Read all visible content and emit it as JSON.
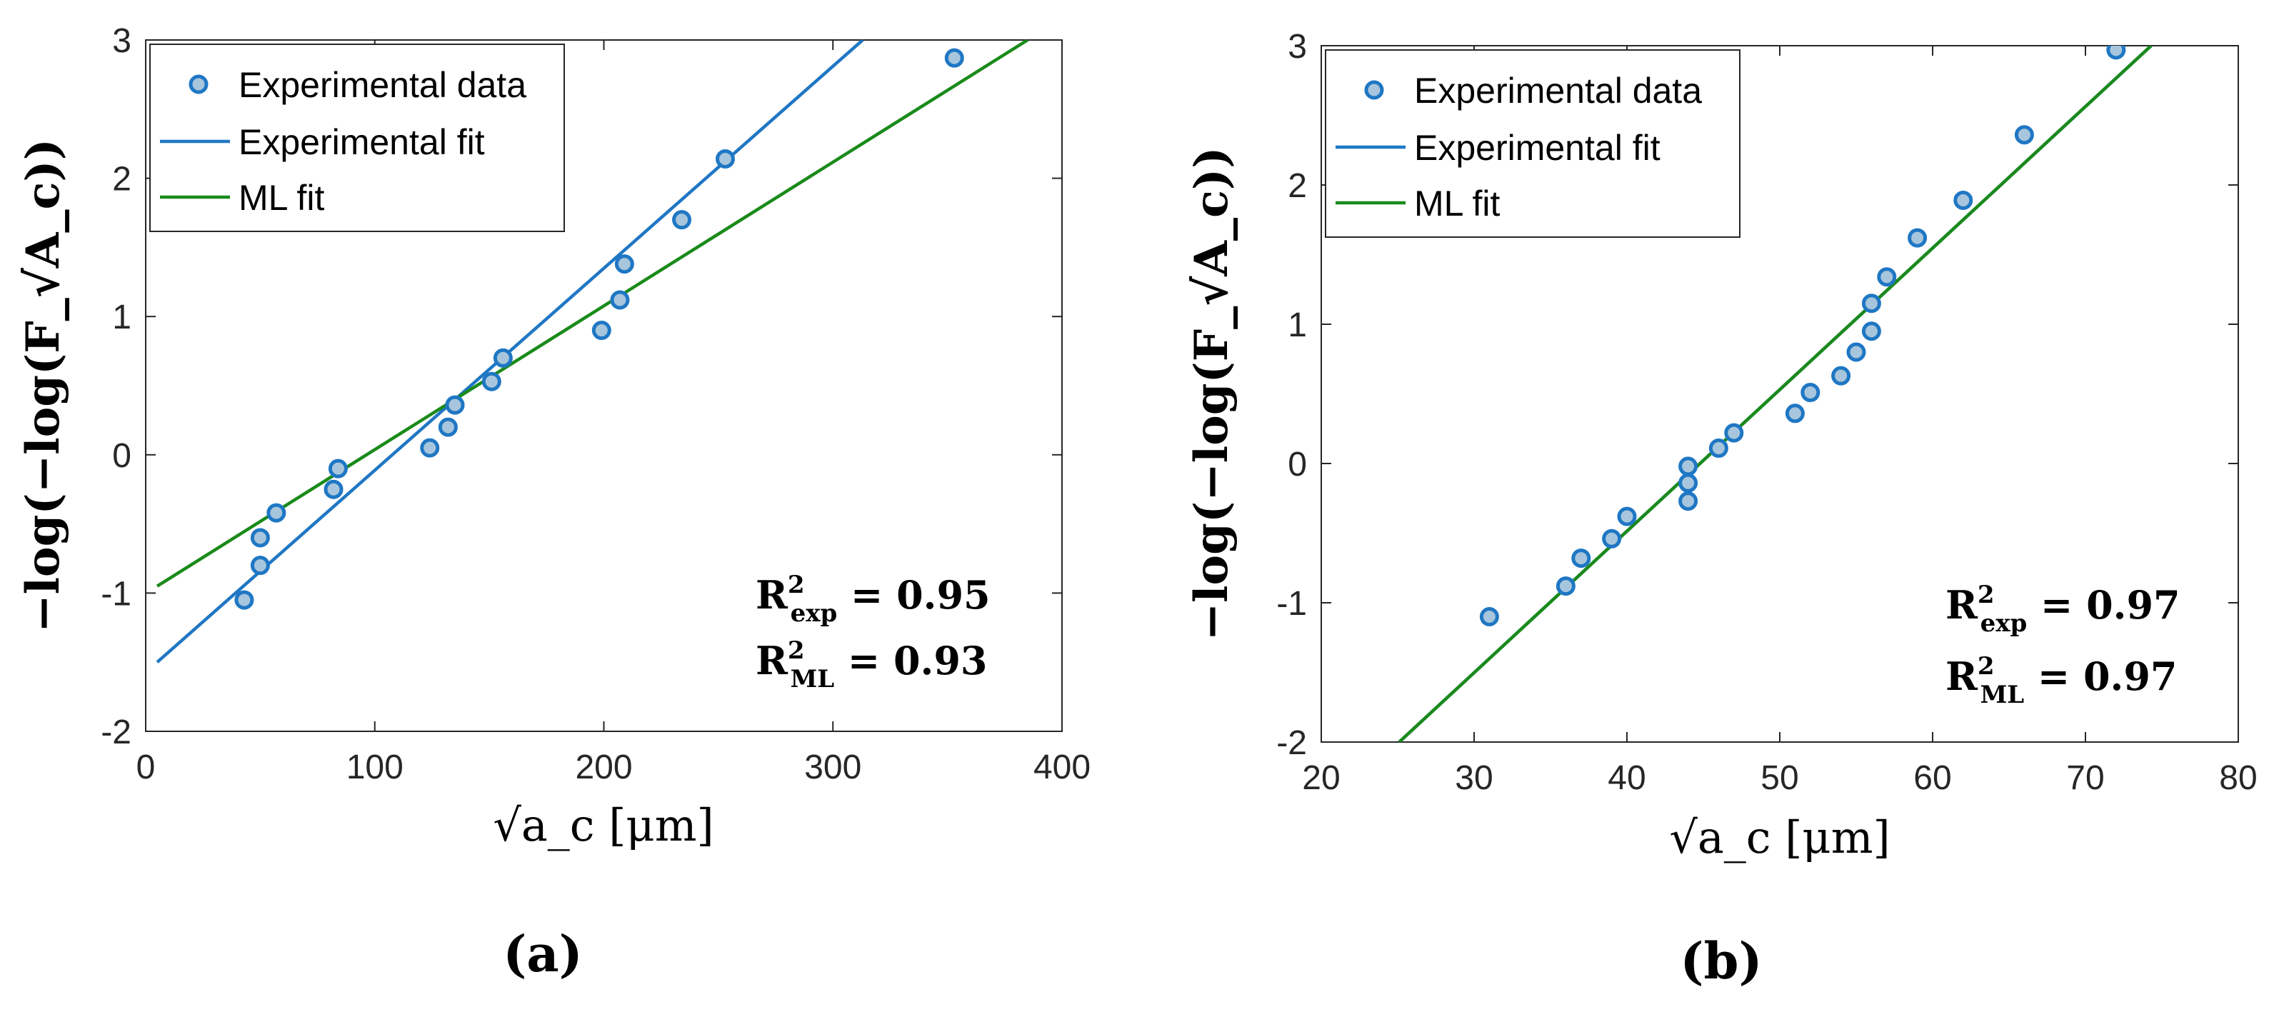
{
  "chart_data": [
    {
      "type": "scatter",
      "panel_label": "(a)",
      "xlabel": "√a_c [μm]",
      "ylabel": "−log(−log(F_√A_c))",
      "xlim": [
        0,
        400
      ],
      "ylim": [
        -2,
        3
      ],
      "x_ticks": [
        0,
        100,
        200,
        300,
        400
      ],
      "y_ticks": [
        -2,
        -1,
        0,
        1,
        2,
        3
      ],
      "x_tick_labels": [
        "0",
        "100",
        "200",
        "300",
        "400"
      ],
      "y_tick_labels": [
        "-2",
        "-1",
        "0",
        "1",
        "2",
        "3"
      ],
      "legend": {
        "placement": "top-left",
        "entries": [
          "Experimental data",
          "Experimental fit",
          "ML fit"
        ]
      },
      "series": [
        {
          "name": "Experimental data",
          "kind": "points",
          "x": [
            43,
            50,
            50,
            57,
            82,
            84,
            124,
            132,
            135,
            151,
            156,
            199,
            207,
            209,
            234,
            253,
            353
          ],
          "y": [
            -1.05,
            -0.8,
            -0.6,
            -0.42,
            -0.25,
            -0.1,
            0.05,
            0.2,
            0.36,
            0.53,
            0.7,
            0.9,
            1.12,
            1.38,
            1.7,
            2.14,
            2.87
          ]
        },
        {
          "name": "Experimental fit",
          "kind": "line",
          "x": [
            5,
            313
          ],
          "y": [
            -1.5,
            3.0
          ]
        },
        {
          "name": "ML fit",
          "kind": "line",
          "x": [
            5,
            385
          ],
          "y": [
            -0.95,
            3.0
          ]
        }
      ],
      "annotations": {
        "r2_exp_label": "R",
        "r2_exp_sub": "exp",
        "r2_exp_value": "= 0.95",
        "r2_ml_label": "R",
        "r2_ml_sub": "ML",
        "r2_ml_value": "= 0.93"
      }
    },
    {
      "type": "scatter",
      "panel_label": "(b)",
      "xlabel": "√a_c [μm]",
      "ylabel": "−log(−log(F_√A_c))",
      "xlim": [
        20,
        80
      ],
      "ylim": [
        -2,
        3
      ],
      "x_ticks": [
        20,
        30,
        40,
        50,
        60,
        70,
        80
      ],
      "y_ticks": [
        -2,
        -1,
        0,
        1,
        2,
        3
      ],
      "x_tick_labels": [
        "20",
        "30",
        "40",
        "50",
        "60",
        "70",
        "80"
      ],
      "y_tick_labels": [
        "-2",
        "-1",
        "0",
        "1",
        "2",
        "3"
      ],
      "legend": {
        "placement": "top-left",
        "entries": [
          "Experimental data",
          "Experimental fit",
          "ML fit"
        ]
      },
      "series": [
        {
          "name": "Experimental data",
          "kind": "points",
          "x": [
            31,
            36,
            37,
            39,
            40,
            44,
            44,
            44,
            46,
            47,
            51,
            52,
            54,
            55,
            56,
            56,
            57,
            59,
            62,
            66,
            72
          ],
          "y": [
            -1.1,
            -0.88,
            -0.68,
            -0.54,
            -0.38,
            -0.02,
            -0.14,
            -0.27,
            0.11,
            0.22,
            0.36,
            0.51,
            0.63,
            0.8,
            0.95,
            1.15,
            1.34,
            1.62,
            1.89,
            2.36,
            2.97
          ]
        },
        {
          "name": "Experimental fit",
          "kind": "line",
          "x": [
            25.1,
            74.3
          ],
          "y": [
            -2.0,
            3.0
          ]
        },
        {
          "name": "ML fit",
          "kind": "line",
          "x": [
            25.1,
            74.3
          ],
          "y": [
            -2.0,
            3.0
          ]
        }
      ],
      "annotations": {
        "r2_exp_label": "R",
        "r2_exp_sub": "exp",
        "r2_exp_value": "= 0.97",
        "r2_ml_label": "R",
        "r2_ml_sub": "ML",
        "r2_ml_value": "= 0.97"
      }
    }
  ],
  "style": {
    "exp_fit_color": "#1f77c4",
    "ml_fit_color": "#1a8a1a",
    "marker_fill": "#a7c6dd",
    "marker_edge": "#1f77c4",
    "axis_color": "#262626"
  }
}
